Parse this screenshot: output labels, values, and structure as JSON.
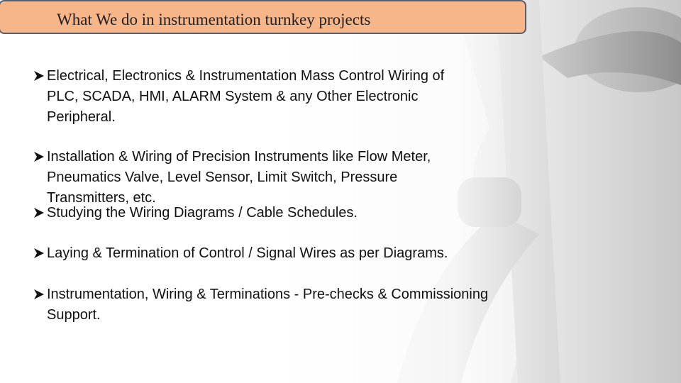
{
  "header": {
    "title": "What We do in instrumentation turnkey projects"
  },
  "bullets": [
    {
      "lines": [
        "Electrical, Electronics & Instrumentation Mass Control Wiring of",
        "PLC, SCADA, HMI, ALARM System & any Other Electronic",
        "Peripheral."
      ]
    },
    {
      "lines": [
        "Installation & Wiring of Precision Instruments like Flow Meter,",
        "Pneumatics Valve, Level Sensor, Limit Switch, Pressure",
        "Transmitters, etc."
      ]
    },
    {
      "lines": [
        "Studying the Wiring Diagrams / Cable Schedules."
      ]
    },
    {
      "lines": [
        "Laying & Termination of Control / Signal Wires as per Diagrams."
      ]
    },
    {
      "lines": [
        "Instrumentation, Wiring & Terminations - Pre-checks & Commissioning",
        "Support."
      ]
    }
  ]
}
